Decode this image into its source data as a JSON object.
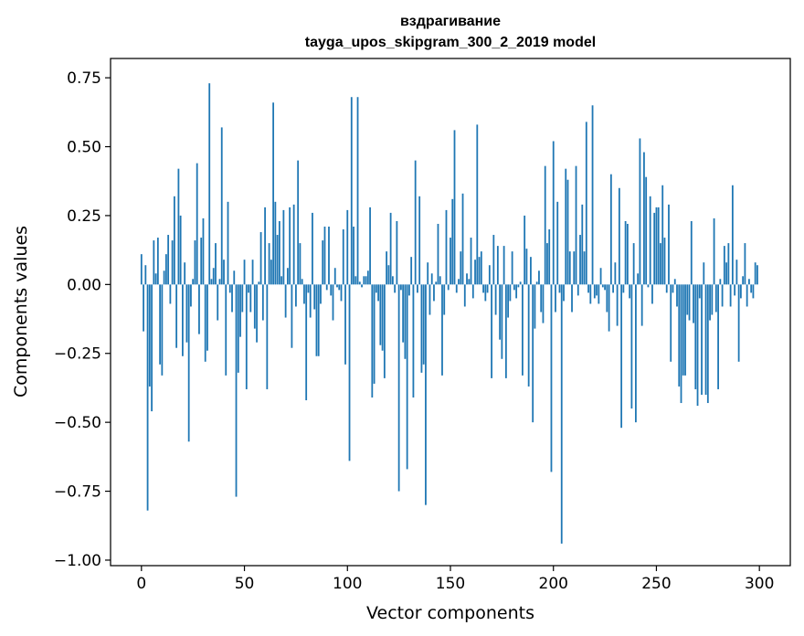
{
  "chart_data": {
    "type": "bar",
    "title_line1": "вздрагивание",
    "title_line2": "tayga_upos_skipgram_300_2_2019 model",
    "xlabel": "Vector components",
    "ylabel": "Components values",
    "xlim": [
      -15,
      315
    ],
    "ylim": [
      -1.02,
      0.82
    ],
    "xticks": [
      0,
      50,
      100,
      150,
      200,
      250,
      300
    ],
    "xtick_labels": [
      "0",
      "50",
      "100",
      "150",
      "200",
      "250",
      "300"
    ],
    "yticks": [
      -1.0,
      -0.75,
      -0.5,
      -0.25,
      0.0,
      0.25,
      0.5,
      0.75
    ],
    "ytick_labels": [
      "−1.00",
      "−0.75",
      "−0.50",
      "−0.25",
      "0.00",
      "0.25",
      "0.50",
      "0.75"
    ],
    "grid": false,
    "bar_color": "#1f77b4",
    "values": [
      0.11,
      -0.17,
      0.07,
      -0.82,
      -0.37,
      -0.46,
      0.16,
      0.04,
      0.17,
      -0.29,
      -0.33,
      0.05,
      0.11,
      0.18,
      -0.07,
      0.16,
      0.32,
      -0.23,
      0.42,
      0.25,
      -0.26,
      0.08,
      -0.21,
      -0.57,
      -0.08,
      0.02,
      0.16,
      0.44,
      -0.18,
      0.17,
      0.24,
      -0.28,
      -0.24,
      0.73,
      0.02,
      0.06,
      0.15,
      -0.13,
      0.02,
      0.57,
      0.09,
      -0.33,
      0.3,
      -0.03,
      -0.1,
      0.05,
      -0.77,
      -0.32,
      -0.19,
      -0.1,
      0.09,
      -0.38,
      -0.03,
      -0.1,
      0.09,
      -0.16,
      -0.21,
      0.01,
      0.19,
      -0.13,
      0.28,
      -0.38,
      0.15,
      0.09,
      0.66,
      0.3,
      0.18,
      0.23,
      0.03,
      0.27,
      -0.12,
      0.06,
      0.28,
      -0.23,
      0.29,
      -0.08,
      0.45,
      0.15,
      0.02,
      -0.07,
      -0.42,
      -0.03,
      -0.12,
      0.26,
      -0.09,
      -0.26,
      -0.26,
      -0.07,
      0.16,
      0.21,
      -0.02,
      0.21,
      -0.04,
      -0.13,
      0.06,
      -0.01,
      -0.02,
      -0.06,
      0.2,
      -0.29,
      0.27,
      -0.64,
      0.68,
      0.21,
      0.03,
      0.68,
      0.01,
      -0.01,
      0.03,
      0.03,
      0.05,
      0.28,
      -0.41,
      -0.36,
      -0.03,
      -0.06,
      -0.22,
      -0.24,
      -0.34,
      0.12,
      0.07,
      0.26,
      0.03,
      -0.03,
      0.23,
      -0.75,
      -0.02,
      -0.21,
      -0.27,
      -0.67,
      -0.04,
      0.1,
      -0.41,
      0.45,
      -0.03,
      0.32,
      -0.32,
      -0.29,
      -0.8,
      0.08,
      -0.11,
      0.04,
      -0.06,
      0.01,
      0.22,
      0.03,
      -0.33,
      -0.11,
      0.27,
      -0.02,
      0.17,
      0.31,
      0.56,
      -0.03,
      0.02,
      0.12,
      0.33,
      -0.08,
      0.04,
      0.02,
      0.17,
      -0.05,
      0.09,
      0.58,
      0.1,
      0.12,
      -0.03,
      -0.06,
      -0.03,
      0.07,
      -0.34,
      0.18,
      -0.11,
      0.14,
      -0.2,
      -0.27,
      0.14,
      -0.34,
      -0.12,
      -0.06,
      0.12,
      -0.02,
      -0.05,
      -0.01,
      0.01,
      -0.33,
      0.25,
      0.13,
      -0.37,
      0.1,
      -0.5,
      -0.16,
      0.01,
      0.05,
      -0.1,
      -0.14,
      0.43,
      0.15,
      0.2,
      -0.68,
      0.52,
      -0.1,
      0.3,
      -0.03,
      -0.94,
      -0.06,
      0.42,
      0.38,
      0.12,
      -0.1,
      0.12,
      0.43,
      -0.04,
      0.18,
      0.29,
      0.12,
      0.59,
      -0.03,
      -0.07,
      0.65,
      -0.05,
      -0.04,
      -0.07,
      0.06,
      -0.01,
      -0.02,
      -0.1,
      -0.17,
      0.4,
      -0.03,
      0.08,
      -0.15,
      0.35,
      -0.52,
      -0.03,
      0.23,
      0.22,
      -0.05,
      -0.45,
      0.15,
      -0.5,
      0.04,
      0.53,
      -0.15,
      0.48,
      0.39,
      -0.01,
      0.32,
      -0.07,
      0.26,
      0.28,
      0.28,
      0.15,
      0.36,
      0.17,
      -0.03,
      0.29,
      -0.28,
      -0.03,
      0.02,
      -0.08,
      -0.37,
      -0.43,
      -0.33,
      -0.33,
      -0.11,
      -0.13,
      0.23,
      -0.14,
      -0.38,
      -0.44,
      -0.05,
      -0.4,
      0.08,
      -0.4,
      -0.43,
      -0.13,
      -0.11,
      0.24,
      -0.1,
      -0.38,
      0.02,
      -0.08,
      0.14,
      0.08,
      0.15,
      -0.08,
      0.36,
      -0.04,
      0.09,
      -0.28,
      -0.05,
      0.03,
      0.15,
      -0.08,
      0.02,
      -0.03,
      -0.05,
      0.08,
      0.07
    ]
  }
}
